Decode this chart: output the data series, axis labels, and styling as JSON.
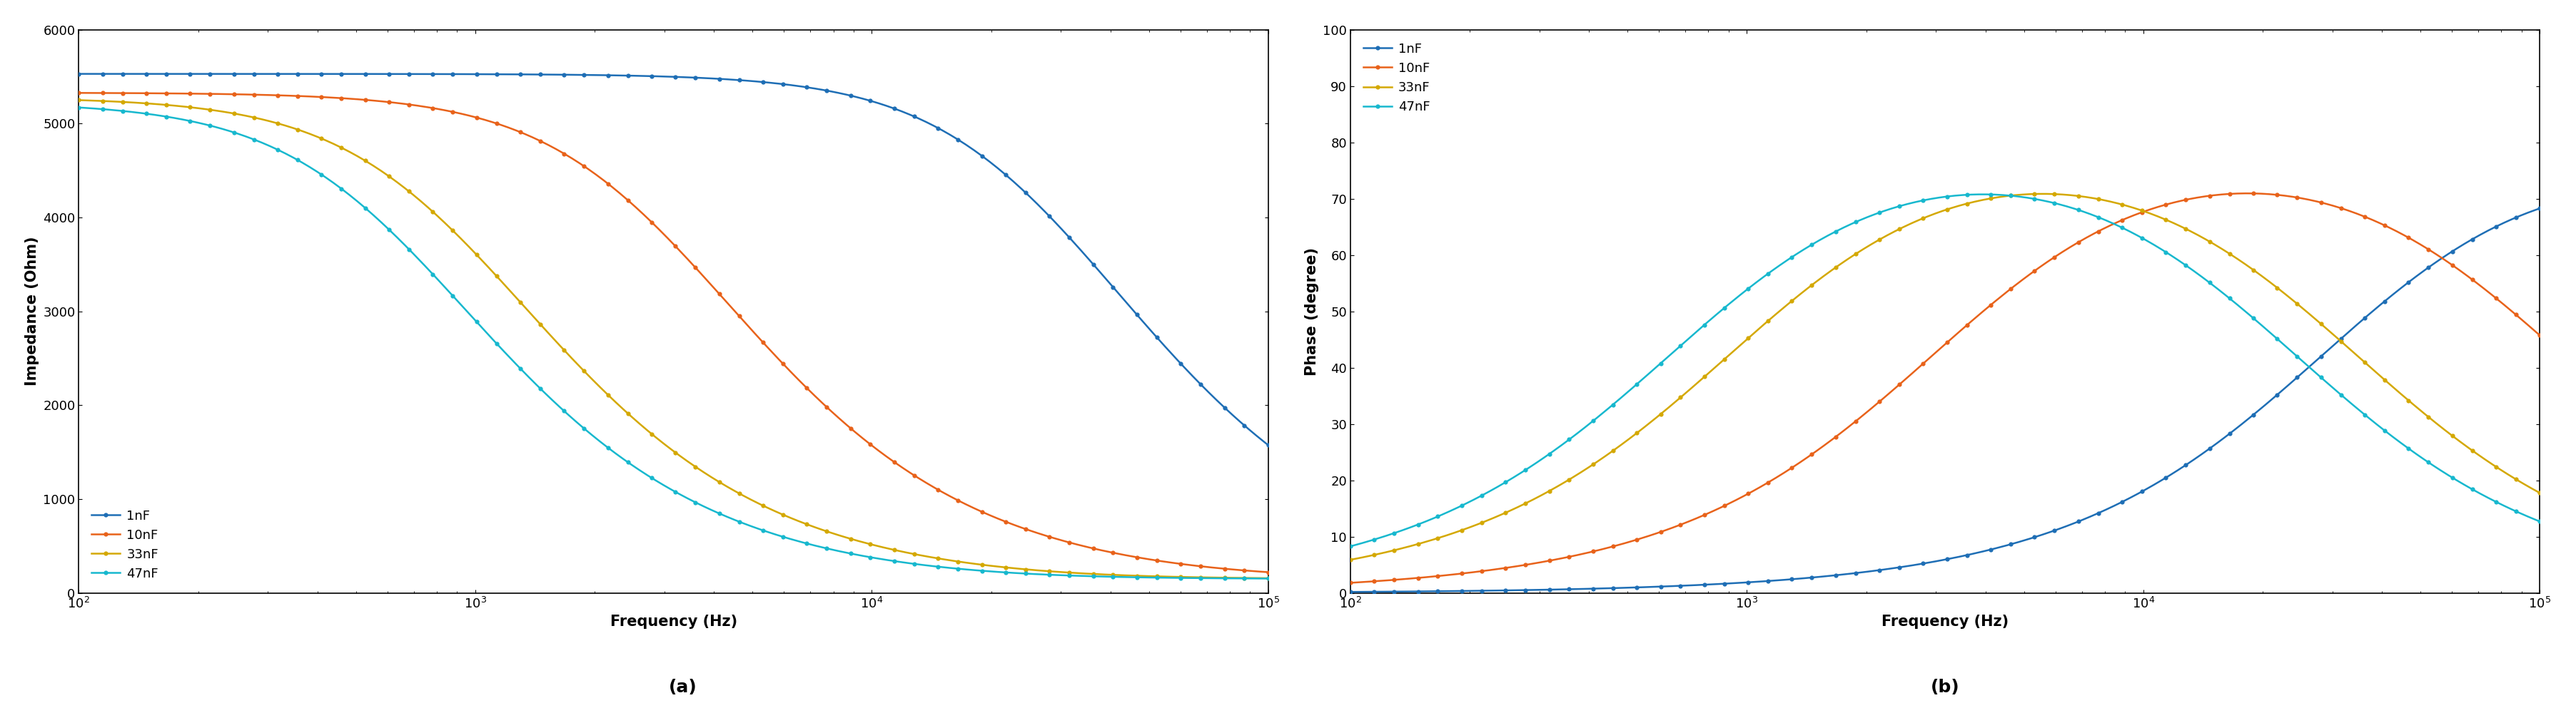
{
  "colors": {
    "1nF": "#1e6eb5",
    "10nF": "#e8621a",
    "33nF": "#d4a800",
    "47nF": "#17b8ce"
  },
  "legend_labels": [
    "1nF",
    "10nF",
    "33nF",
    "47nF"
  ],
  "params": {
    "1nF": {
      "R1": 150,
      "R2": 5380,
      "C": 1e-09
    },
    "10nF": {
      "R1": 150,
      "R2": 5180,
      "C": 1e-08
    },
    "33nF": {
      "R1": 150,
      "R2": 5130,
      "C": 3.3e-08
    },
    "47nF": {
      "R1": 150,
      "R2": 5080,
      "C": 4.7e-08
    }
  },
  "plot_a": {
    "xlabel": "Frequency (Hz)",
    "ylabel": "Impedance (Ohm)",
    "xlim": [
      100,
      100000
    ],
    "ylim": [
      0,
      6000
    ],
    "yticks": [
      0,
      1000,
      2000,
      3000,
      4000,
      5000,
      6000
    ],
    "legend_loc": "lower left"
  },
  "plot_b": {
    "xlabel": "Frequency (Hz)",
    "ylabel": "Phase (degree)",
    "xlim": [
      100,
      100000
    ],
    "ylim": [
      0,
      100
    ],
    "yticks": [
      0,
      10,
      20,
      30,
      40,
      50,
      60,
      70,
      80,
      90,
      100
    ],
    "legend_loc": "upper left"
  },
  "label_a": "(a)",
  "label_b": "(b)",
  "n_points": 300,
  "n_markers": 55,
  "linewidth": 1.8,
  "markersize": 4.5,
  "legend_fontsize": 13,
  "axis_label_fontsize": 15,
  "tick_labelsize": 13,
  "caption_fontsize": 18,
  "background_color": "#ffffff"
}
